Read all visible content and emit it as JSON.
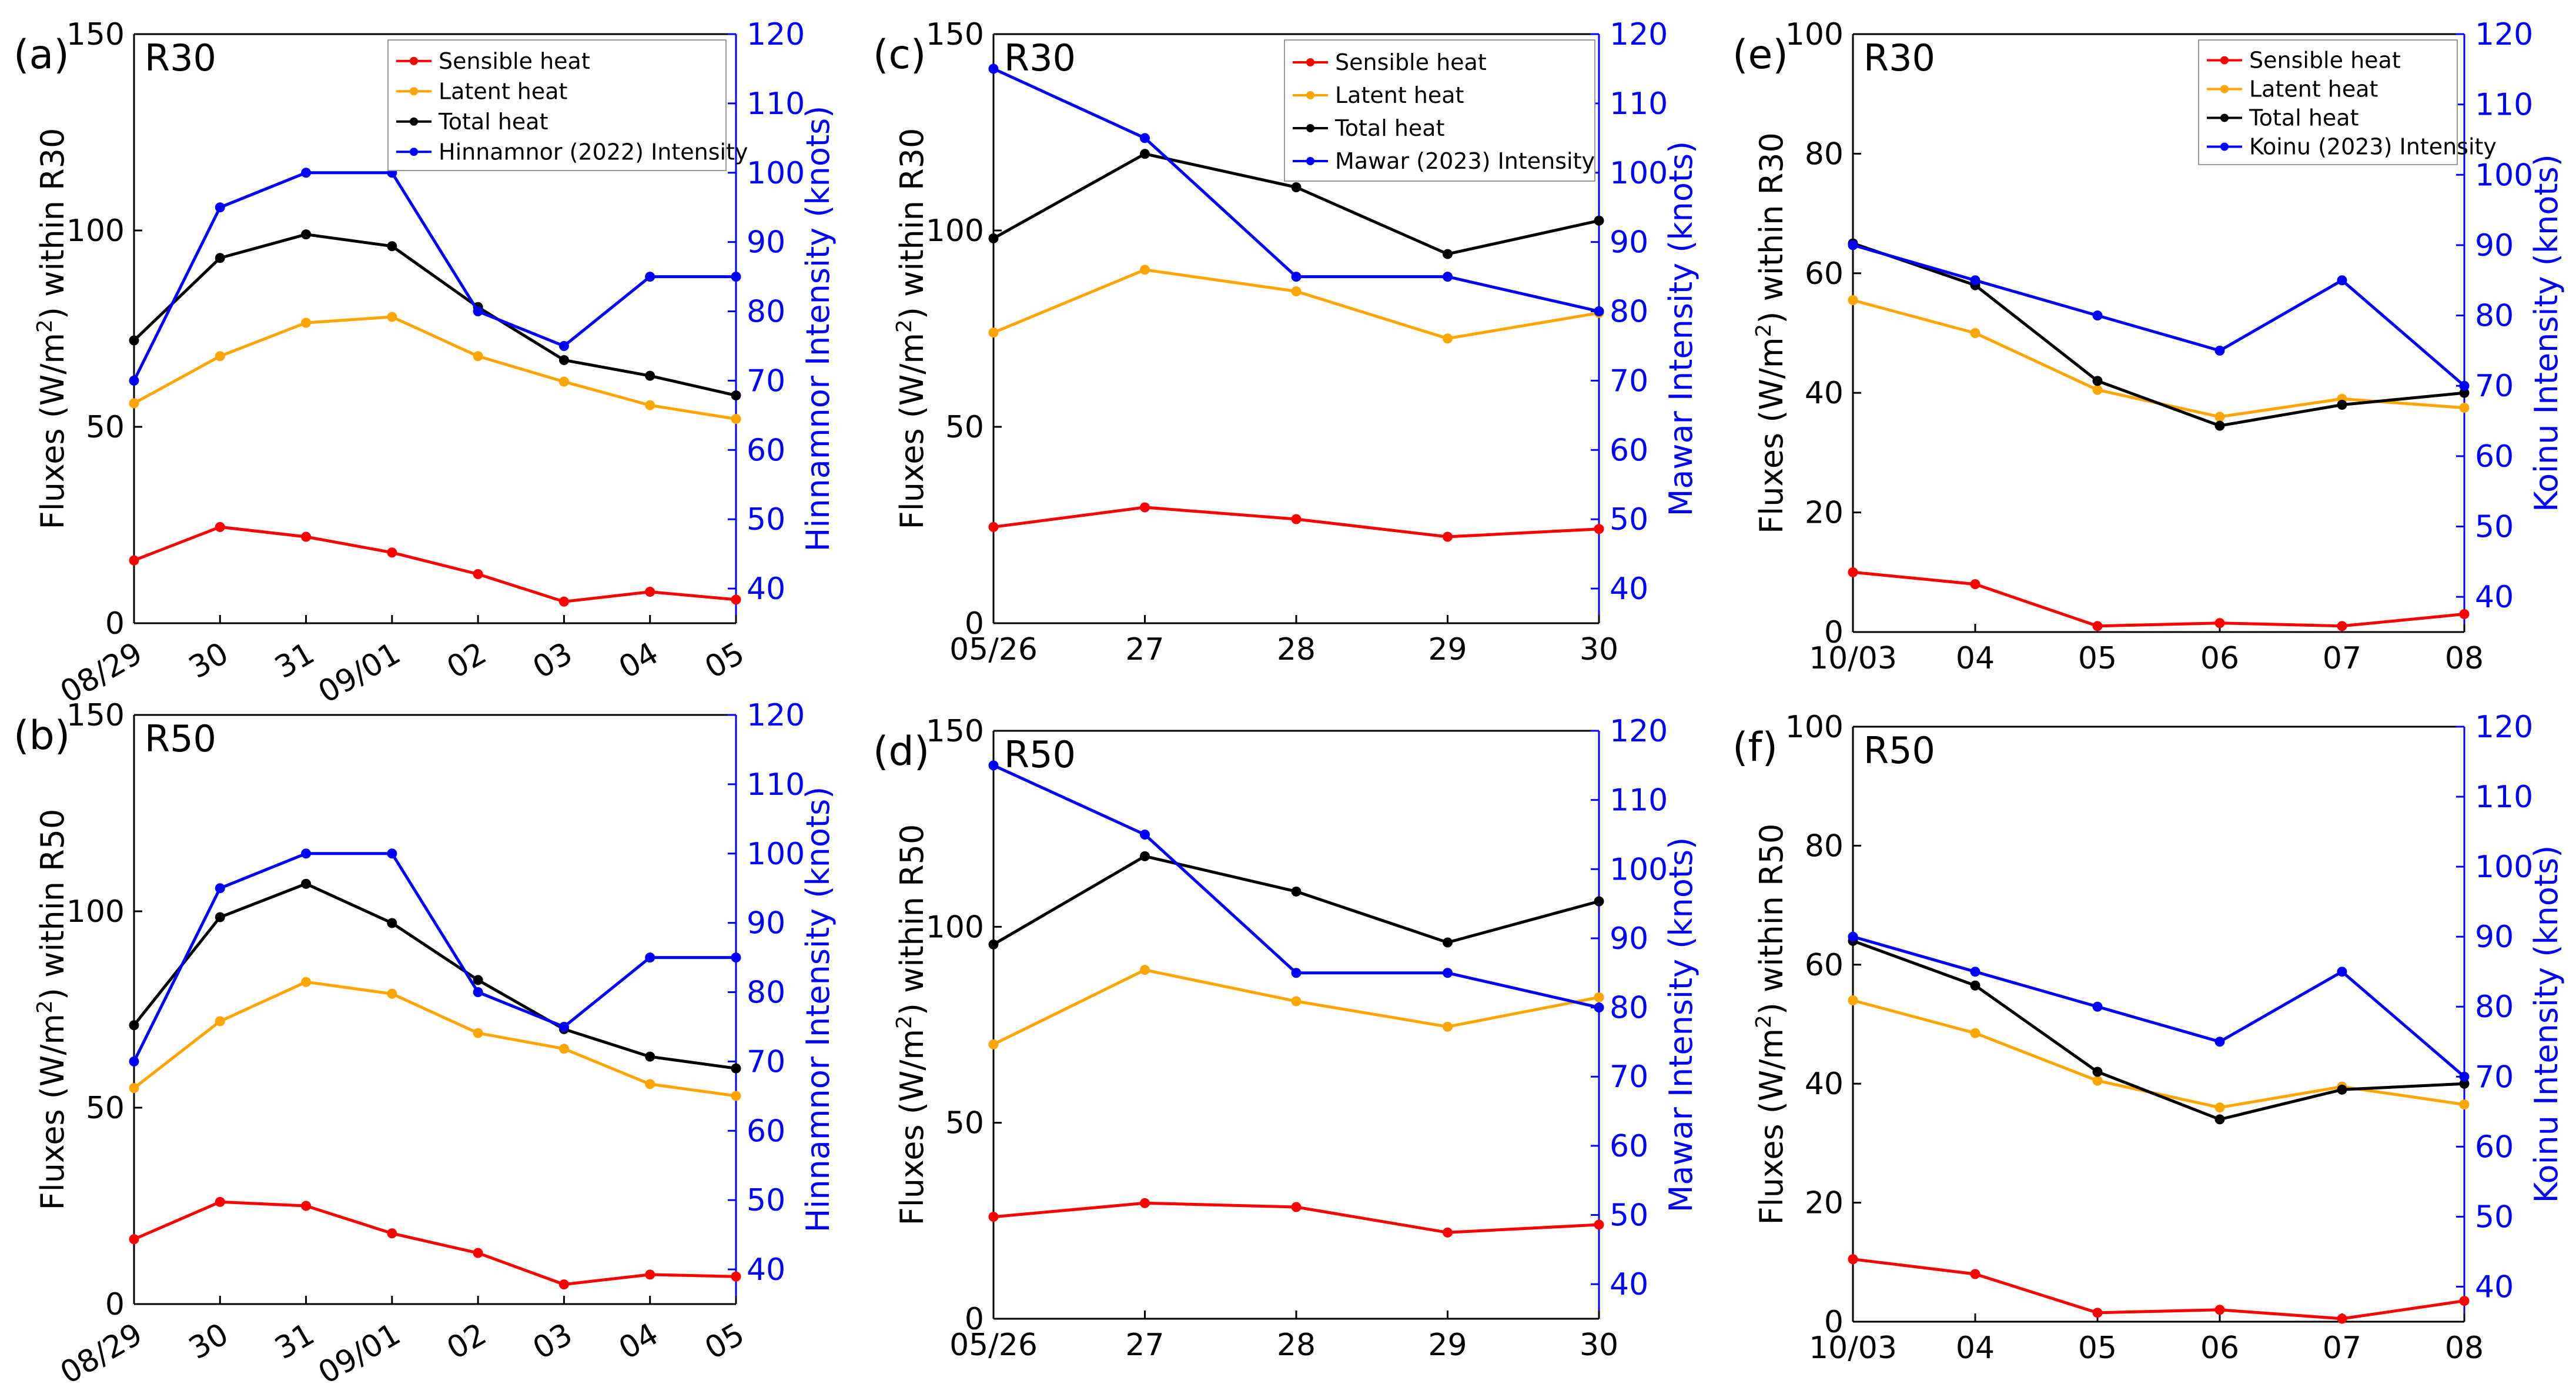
{
  "figure": {
    "background": "#ffffff"
  },
  "colors": {
    "sensible": "#ff0000",
    "latent": "#ffa500",
    "total": "#000000",
    "intensity": "#0000ff"
  },
  "chart_data": [
    {
      "id": "a",
      "type": "line",
      "panel_label": "(a)",
      "region": "R30",
      "categories": [
        "08/29",
        "30",
        "31",
        "09/01",
        "02",
        "03",
        "04",
        "05"
      ],
      "tick_rotate": true,
      "ylabel_left": "Fluxes (W/m²) within R30",
      "ylabel_right": "Hinnamnor Intensity (knots)",
      "ylim_left": [
        0,
        150
      ],
      "yticks_left": [
        0,
        50,
        100,
        150
      ],
      "ylim_right": [
        35,
        120
      ],
      "yticks_right": [
        40,
        50,
        60,
        70,
        80,
        90,
        100,
        110,
        120
      ],
      "series": [
        {
          "name": "Sensible heat",
          "axis": "left",
          "color": "#ff0000",
          "values": [
            16,
            24.5,
            22,
            18,
            12.5,
            5.5,
            8,
            6
          ]
        },
        {
          "name": "Latent heat",
          "axis": "left",
          "color": "#ffa500",
          "values": [
            56,
            68,
            76.5,
            78,
            68,
            61.5,
            55.5,
            52
          ]
        },
        {
          "name": "Total heat",
          "axis": "left",
          "color": "#000000",
          "values": [
            72,
            93,
            99,
            96,
            80.5,
            67,
            63,
            58
          ]
        },
        {
          "name": "Hinnamnor (2022) Intensity",
          "axis": "right",
          "color": "#0000ff",
          "values": [
            70,
            95,
            100,
            100,
            80,
            75,
            85,
            85
          ]
        }
      ]
    },
    {
      "id": "b",
      "type": "line",
      "panel_label": "(b)",
      "region": "R50",
      "categories": [
        "08/29",
        "30",
        "31",
        "09/01",
        "02",
        "03",
        "04",
        "05"
      ],
      "tick_rotate": true,
      "ylabel_left": "Fluxes (W/m²) within R50",
      "ylabel_right": "Hinnamnor Intensity (knots)",
      "ylim_left": [
        0,
        150
      ],
      "yticks_left": [
        0,
        50,
        100,
        150
      ],
      "ylim_right": [
        35,
        120
      ],
      "yticks_right": [
        40,
        50,
        60,
        70,
        80,
        90,
        100,
        110,
        120
      ],
      "series": [
        {
          "name": "Sensible heat",
          "axis": "left",
          "color": "#ff0000",
          "values": [
            16.5,
            26,
            25,
            18,
            13,
            5,
            7.5,
            7
          ]
        },
        {
          "name": "Latent heat",
          "axis": "left",
          "color": "#ffa500",
          "values": [
            55,
            72,
            82,
            79,
            69,
            65,
            56,
            53
          ]
        },
        {
          "name": "Total heat",
          "axis": "left",
          "color": "#000000",
          "values": [
            71,
            98.5,
            107,
            97,
            82.5,
            70,
            63,
            60
          ]
        },
        {
          "name": "Hinnamnor (2022) Intensity",
          "axis": "right",
          "color": "#0000ff",
          "values": [
            70,
            95,
            100,
            100,
            80,
            75,
            85,
            85
          ]
        }
      ]
    },
    {
      "id": "c",
      "type": "line",
      "panel_label": "(c)",
      "region": "R30",
      "categories": [
        "05/26",
        "27",
        "28",
        "29",
        "30"
      ],
      "tick_rotate": false,
      "ylabel_left": "Fluxes (W/m²) within R30",
      "ylabel_right": "Mawar Intensity (knots)",
      "ylim_left": [
        0,
        150
      ],
      "yticks_left": [
        0,
        50,
        100,
        150
      ],
      "ylim_right": [
        35,
        120
      ],
      "yticks_right": [
        40,
        50,
        60,
        70,
        80,
        90,
        100,
        110,
        120
      ],
      "series": [
        {
          "name": "Sensible heat",
          "axis": "left",
          "color": "#ff0000",
          "values": [
            24.5,
            29.5,
            26.5,
            22,
            24
          ]
        },
        {
          "name": "Latent heat",
          "axis": "left",
          "color": "#ffa500",
          "values": [
            74,
            90,
            84.5,
            72.5,
            79
          ]
        },
        {
          "name": "Total heat",
          "axis": "left",
          "color": "#000000",
          "values": [
            98,
            119.5,
            111,
            94,
            102.5
          ]
        },
        {
          "name": "Mawar (2023) Intensity",
          "axis": "right",
          "color": "#0000ff",
          "values": [
            115,
            105,
            85,
            85,
            80
          ]
        }
      ]
    },
    {
      "id": "d",
      "type": "line",
      "panel_label": "(d)",
      "region": "R50",
      "categories": [
        "05/26",
        "27",
        "28",
        "29",
        "30"
      ],
      "tick_rotate": false,
      "ylabel_left": "Fluxes (W/m²) within R50",
      "ylabel_right": "Mawar Intensity (knots)",
      "ylim_left": [
        0,
        150
      ],
      "yticks_left": [
        0,
        50,
        100,
        150
      ],
      "ylim_right": [
        35,
        120
      ],
      "yticks_right": [
        40,
        50,
        60,
        70,
        80,
        90,
        100,
        110,
        120
      ],
      "series": [
        {
          "name": "Sensible heat",
          "axis": "left",
          "color": "#ff0000",
          "values": [
            26,
            29.5,
            28.5,
            22,
            24
          ]
        },
        {
          "name": "Latent heat",
          "axis": "left",
          "color": "#ffa500",
          "values": [
            70,
            89,
            81,
            74.5,
            82
          ]
        },
        {
          "name": "Total heat",
          "axis": "left",
          "color": "#000000",
          "values": [
            95.5,
            118,
            109,
            96,
            106.5
          ]
        },
        {
          "name": "Mawar (2023) Intensity",
          "axis": "right",
          "color": "#0000ff",
          "values": [
            115,
            105,
            85,
            85,
            80
          ]
        }
      ]
    },
    {
      "id": "e",
      "type": "line",
      "panel_label": "(e)",
      "region": "R30",
      "categories": [
        "10/03",
        "04",
        "05",
        "06",
        "07",
        "08"
      ],
      "tick_rotate": false,
      "ylabel_left": "Fluxes (W/m²) within R30",
      "ylabel_right": "Koinu Intensity (knots)",
      "ylim_left": [
        0,
        100
      ],
      "yticks_left": [
        0,
        20,
        40,
        60,
        80,
        100
      ],
      "ylim_right": [
        35,
        120
      ],
      "yticks_right": [
        40,
        50,
        60,
        70,
        80,
        90,
        100,
        110,
        120
      ],
      "series": [
        {
          "name": "Sensible heat",
          "axis": "left",
          "color": "#ff0000",
          "values": [
            10,
            8,
            1,
            1.5,
            1,
            3
          ]
        },
        {
          "name": "Latent heat",
          "axis": "left",
          "color": "#ffa500",
          "values": [
            55.5,
            50,
            40.5,
            36,
            39,
            37.5
          ]
        },
        {
          "name": "Total heat",
          "axis": "left",
          "color": "#000000",
          "values": [
            65,
            58,
            42,
            34.5,
            38,
            40
          ]
        },
        {
          "name": "Koinu (2023) Intensity",
          "axis": "right",
          "color": "#0000ff",
          "values": [
            90,
            85,
            80,
            75,
            85,
            70
          ]
        }
      ]
    },
    {
      "id": "f",
      "type": "line",
      "panel_label": "(f)",
      "region": "R50",
      "categories": [
        "10/03",
        "04",
        "05",
        "06",
        "07",
        "08"
      ],
      "tick_rotate": false,
      "ylabel_left": "Fluxes (W/m²) within R50",
      "ylabel_right": "Koinu Intensity (knots)",
      "ylim_left": [
        0,
        100
      ],
      "yticks_left": [
        0,
        20,
        40,
        60,
        80,
        100
      ],
      "ylim_right": [
        35,
        120
      ],
      "yticks_right": [
        40,
        50,
        60,
        70,
        80,
        90,
        100,
        110,
        120
      ],
      "series": [
        {
          "name": "Sensible heat",
          "axis": "left",
          "color": "#ff0000",
          "values": [
            10.5,
            8,
            1.5,
            2,
            0.5,
            3.5
          ]
        },
        {
          "name": "Latent heat",
          "axis": "left",
          "color": "#ffa500",
          "values": [
            54,
            48.5,
            40.5,
            36,
            39.5,
            36.5
          ]
        },
        {
          "name": "Total heat",
          "axis": "left",
          "color": "#000000",
          "values": [
            64,
            56.5,
            42,
            34,
            39,
            40
          ]
        },
        {
          "name": "Koinu (2023) Intensity",
          "axis": "right",
          "color": "#0000ff",
          "values": [
            90,
            85,
            80,
            75,
            85,
            70
          ]
        }
      ]
    }
  ]
}
